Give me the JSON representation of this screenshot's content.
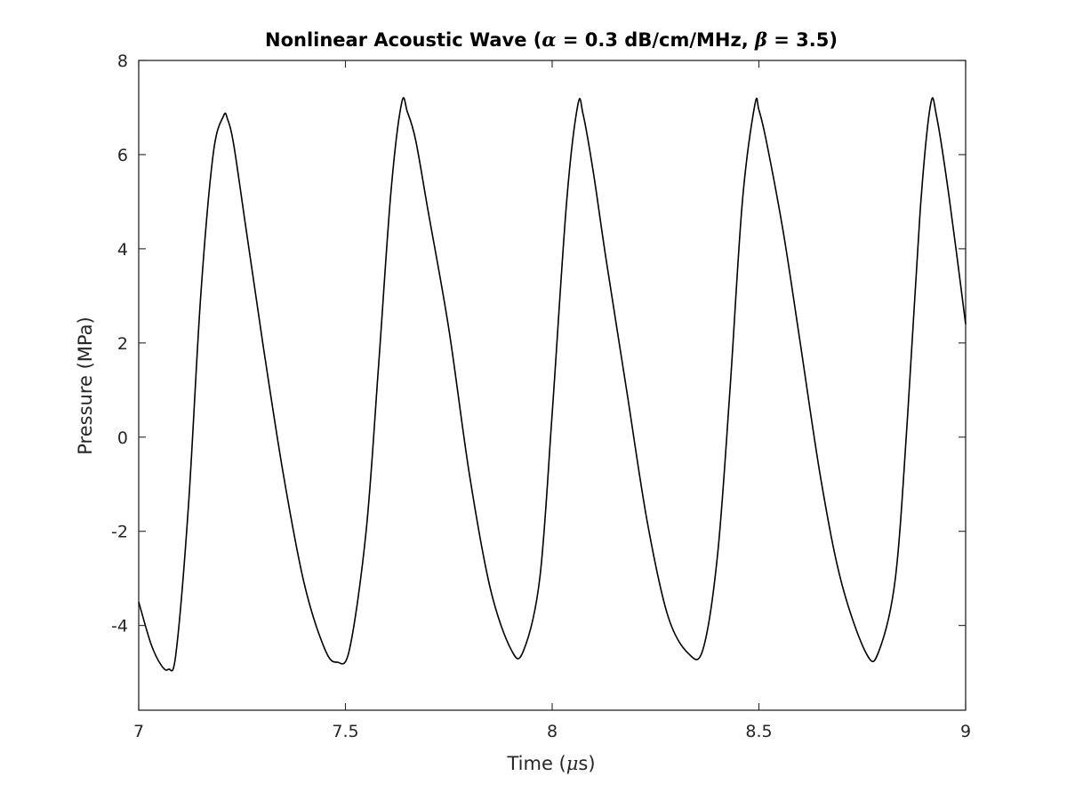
{
  "chart_data": {
    "type": "line",
    "title": {
      "prefix": "Nonlinear Acoustic Wave (",
      "alpha_symbol": "α",
      "alpha_text": " = 0.3 dB/cm/MHz, ",
      "beta_symbol": "β",
      "beta_text": " = 3.5)"
    },
    "xlabel": {
      "prefix": "Time (",
      "mu_symbol": "μ",
      "suffix": "s)"
    },
    "ylabel": "Pressure (MPa)",
    "xlim": [
      7,
      9
    ],
    "ylim": [
      -5.8,
      8
    ],
    "xticks": [
      "7",
      "7.5",
      "8",
      "8.5",
      "9"
    ],
    "yticks": [
      "8",
      "6",
      "4",
      "2",
      "0",
      "-2",
      "-4"
    ],
    "line_color": "#000000",
    "grid": false,
    "legend": false,
    "series": [
      {
        "x": [
          7.0,
          7.03,
          7.055,
          7.072,
          7.09,
          7.12,
          7.15,
          7.18,
          7.205,
          7.215,
          7.23,
          7.26,
          7.3,
          7.35,
          7.4,
          7.45,
          7.48,
          7.51,
          7.55,
          7.58,
          7.61,
          7.636,
          7.65,
          7.67,
          7.7,
          7.75,
          7.8,
          7.85,
          7.9,
          7.93,
          7.97,
          8.0,
          8.035,
          8.062,
          8.075,
          8.1,
          8.13,
          8.18,
          8.23,
          8.28,
          8.33,
          8.365,
          8.4,
          8.43,
          8.46,
          8.49,
          8.5,
          8.52,
          8.56,
          8.6,
          8.65,
          8.7,
          8.76,
          8.79,
          8.83,
          8.86,
          8.89,
          8.915,
          8.93,
          8.96,
          9.0
        ],
        "y": [
          -3.5,
          -4.4,
          -4.85,
          -4.93,
          -4.6,
          -1.5,
          3.0,
          6.0,
          6.82,
          6.75,
          6.2,
          4.4,
          2.0,
          -0.8,
          -3.1,
          -4.5,
          -4.78,
          -4.5,
          -2.0,
          1.5,
          5.2,
          7.1,
          6.9,
          6.3,
          4.8,
          2.3,
          -0.8,
          -3.2,
          -4.5,
          -4.55,
          -3.0,
          0.5,
          5.0,
          7.05,
          6.85,
          5.6,
          3.8,
          1.0,
          -1.8,
          -3.8,
          -4.6,
          -4.5,
          -2.5,
          1.0,
          5.0,
          7.05,
          6.95,
          6.2,
          4.3,
          2.0,
          -0.9,
          -3.1,
          -4.6,
          -4.55,
          -3.0,
          0.5,
          4.8,
          7.05,
          6.8,
          5.1,
          2.4
        ]
      }
    ]
  }
}
